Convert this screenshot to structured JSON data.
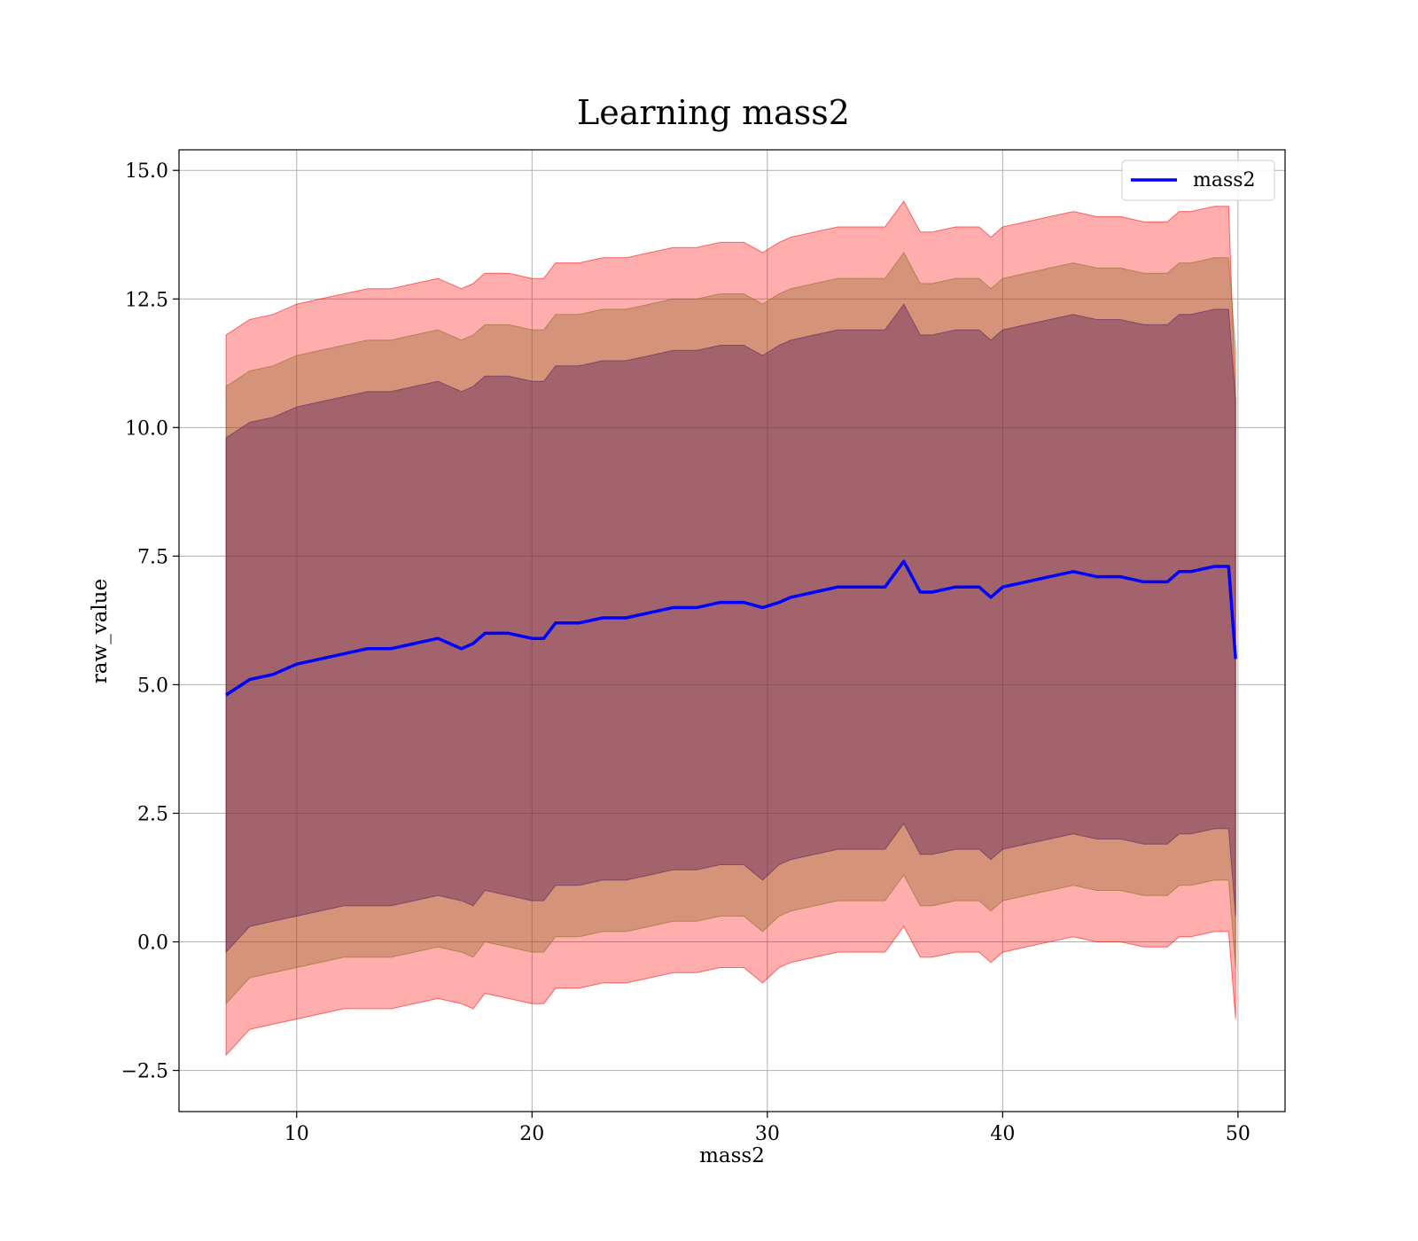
{
  "chart_data": {
    "type": "area",
    "title": "Learning mass2",
    "xlabel": "mass2",
    "ylabel": "raw_value",
    "xlim": [
      5,
      52
    ],
    "ylim": [
      -3.3,
      15.4
    ],
    "xticks": [
      10,
      20,
      30,
      40,
      50
    ],
    "xtick_labels": [
      "10",
      "20",
      "30",
      "40",
      "50"
    ],
    "yticks": [
      -2.5,
      0.0,
      2.5,
      5.0,
      7.5,
      10.0,
      12.5,
      15.0
    ],
    "ytick_labels": [
      "−2.5",
      "0.0",
      "2.5",
      "5.0",
      "7.5",
      "10.0",
      "12.5",
      "15.0"
    ],
    "grid": true,
    "legend": {
      "position": "top-right",
      "entries": [
        "mass2"
      ]
    },
    "x": [
      7.0,
      8.0,
      9.0,
      10.0,
      11.0,
      12.0,
      13.0,
      14.0,
      15.0,
      16.0,
      17.0,
      17.5,
      18.0,
      19.0,
      20.0,
      20.5,
      21.0,
      22.0,
      23.0,
      24.0,
      25.0,
      26.0,
      27.0,
      28.0,
      29.0,
      29.8,
      30.5,
      31.0,
      32.0,
      33.0,
      34.0,
      35.0,
      35.8,
      36.5,
      37.0,
      38.0,
      39.0,
      39.5,
      40.0,
      41.0,
      42.0,
      43.0,
      44.0,
      45.0,
      46.0,
      47.0,
      47.5,
      48.0,
      49.0,
      49.6,
      49.9
    ],
    "series": [
      {
        "name": "mass2",
        "color": "#0000ff",
        "values": [
          4.8,
          5.1,
          5.2,
          5.4,
          5.5,
          5.6,
          5.7,
          5.7,
          5.8,
          5.9,
          5.7,
          5.8,
          6.0,
          6.0,
          5.9,
          5.9,
          6.2,
          6.2,
          6.3,
          6.3,
          6.4,
          6.5,
          6.5,
          6.6,
          6.6,
          6.5,
          6.6,
          6.7,
          6.8,
          6.9,
          6.9,
          6.9,
          7.4,
          6.8,
          6.8,
          6.9,
          6.9,
          6.7,
          6.9,
          7.0,
          7.1,
          7.2,
          7.1,
          7.1,
          7.0,
          7.0,
          7.2,
          7.2,
          7.3,
          7.3,
          5.5
        ]
      }
    ],
    "bands": [
      {
        "color": "#ff0000",
        "opacity": 0.32,
        "lower": [
          -2.2,
          -1.7,
          -1.6,
          -1.5,
          -1.4,
          -1.3,
          -1.3,
          -1.3,
          -1.2,
          -1.1,
          -1.2,
          -1.3,
          -1.0,
          -1.1,
          -1.2,
          -1.2,
          -0.9,
          -0.9,
          -0.8,
          -0.8,
          -0.7,
          -0.6,
          -0.6,
          -0.5,
          -0.5,
          -0.8,
          -0.5,
          -0.4,
          -0.3,
          -0.2,
          -0.2,
          -0.2,
          0.3,
          -0.3,
          -0.3,
          -0.2,
          -0.2,
          -0.4,
          -0.2,
          -0.1,
          0.0,
          0.1,
          0.0,
          0.0,
          -0.1,
          -0.1,
          0.1,
          0.1,
          0.2,
          0.2,
          -1.5
        ],
        "upper": [
          11.8,
          12.1,
          12.2,
          12.4,
          12.5,
          12.6,
          12.7,
          12.7,
          12.8,
          12.9,
          12.7,
          12.8,
          13.0,
          13.0,
          12.9,
          12.9,
          13.2,
          13.2,
          13.3,
          13.3,
          13.4,
          13.5,
          13.5,
          13.6,
          13.6,
          13.4,
          13.6,
          13.7,
          13.8,
          13.9,
          13.9,
          13.9,
          14.4,
          13.8,
          13.8,
          13.9,
          13.9,
          13.7,
          13.9,
          14.0,
          14.1,
          14.2,
          14.1,
          14.1,
          14.0,
          14.0,
          14.2,
          14.2,
          14.3,
          14.3,
          10.5
        ]
      },
      {
        "color": "#8b6a22",
        "opacity": 0.36,
        "lower": [
          -1.2,
          -0.7,
          -0.6,
          -0.5,
          -0.4,
          -0.3,
          -0.3,
          -0.3,
          -0.2,
          -0.1,
          -0.2,
          -0.3,
          0.0,
          -0.1,
          -0.2,
          -0.2,
          0.1,
          0.1,
          0.2,
          0.2,
          0.3,
          0.4,
          0.4,
          0.5,
          0.5,
          0.2,
          0.5,
          0.6,
          0.7,
          0.8,
          0.8,
          0.8,
          1.3,
          0.7,
          0.7,
          0.8,
          0.8,
          0.6,
          0.8,
          0.9,
          1.0,
          1.1,
          1.0,
          1.0,
          0.9,
          0.9,
          1.1,
          1.1,
          1.2,
          1.2,
          -0.5
        ],
        "upper": [
          10.8,
          11.1,
          11.2,
          11.4,
          11.5,
          11.6,
          11.7,
          11.7,
          11.8,
          11.9,
          11.7,
          11.8,
          12.0,
          12.0,
          11.9,
          11.9,
          12.2,
          12.2,
          12.3,
          12.3,
          12.4,
          12.5,
          12.5,
          12.6,
          12.6,
          12.4,
          12.6,
          12.7,
          12.8,
          12.9,
          12.9,
          12.9,
          13.4,
          12.8,
          12.8,
          12.9,
          12.9,
          12.7,
          12.9,
          13.0,
          13.1,
          13.2,
          13.1,
          13.1,
          13.0,
          13.0,
          13.2,
          13.2,
          13.3,
          13.3,
          11.5
        ]
      },
      {
        "color": "#5c1f5a",
        "opacity": 0.42,
        "lower": [
          -0.2,
          0.3,
          0.4,
          0.5,
          0.6,
          0.7,
          0.7,
          0.7,
          0.8,
          0.9,
          0.8,
          0.7,
          1.0,
          0.9,
          0.8,
          0.8,
          1.1,
          1.1,
          1.2,
          1.2,
          1.3,
          1.4,
          1.4,
          1.5,
          1.5,
          1.2,
          1.5,
          1.6,
          1.7,
          1.8,
          1.8,
          1.8,
          2.3,
          1.7,
          1.7,
          1.8,
          1.8,
          1.6,
          1.8,
          1.9,
          2.0,
          2.1,
          2.0,
          2.0,
          1.9,
          1.9,
          2.1,
          2.1,
          2.2,
          2.2,
          0.5
        ],
        "upper": [
          9.8,
          10.1,
          10.2,
          10.4,
          10.5,
          10.6,
          10.7,
          10.7,
          10.8,
          10.9,
          10.7,
          10.8,
          11.0,
          11.0,
          10.9,
          10.9,
          11.2,
          11.2,
          11.3,
          11.3,
          11.4,
          11.5,
          11.5,
          11.6,
          11.6,
          11.4,
          11.6,
          11.7,
          11.8,
          11.9,
          11.9,
          11.9,
          12.4,
          11.8,
          11.8,
          11.9,
          11.9,
          11.7,
          11.9,
          12.0,
          12.1,
          12.2,
          12.1,
          12.1,
          12.0,
          12.0,
          12.2,
          12.2,
          12.3,
          12.3,
          10.5
        ]
      }
    ]
  }
}
